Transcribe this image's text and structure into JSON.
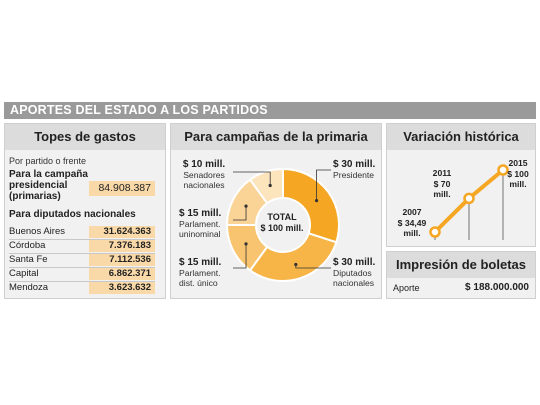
{
  "banner": "APORTES DEL ESTADO A LOS PARTIDOS",
  "topes": {
    "header": "Topes de gastos",
    "subtitle": "Por partido o frente",
    "campaign_label_1": "Para la campaña",
    "campaign_label_2": "presidencial",
    "campaign_label_3": "(primarias)",
    "campaign_value": "84.908.387",
    "deputies_title": "Para diputados nacionales",
    "rows": [
      {
        "name": "Buenos Aires",
        "value": "31.624.363"
      },
      {
        "name": "Córdoba",
        "value": "7.376.183"
      },
      {
        "name": "Santa Fe",
        "value": "7.112.536"
      },
      {
        "name": "Capital",
        "value": "6.862.371"
      },
      {
        "name": "Mendoza",
        "value": "3.623.632"
      }
    ]
  },
  "primaria": {
    "header": "Para campañas de la primaria",
    "center_1": "TOTAL",
    "center_2": "$ 100 mill.",
    "labels": {
      "sen_amount": "$ 10 mill.",
      "sen_1": "Senadores",
      "sen_2": "nacionales",
      "pu_amount": "$ 15 mill.",
      "pu_1": "Parlament.",
      "pu_2": "uninominal",
      "pd_amount": "$ 15 mill.",
      "pd_1": "Parlament.",
      "pd_2": "dist. único",
      "pres_amount": "$ 30 mill.",
      "pres_1": "Presidente",
      "dip_amount": "$ 30 mill.",
      "dip_1": "Diputados",
      "dip_2": "nacionales"
    }
  },
  "variacion": {
    "header": "Variación histórica",
    "labels": [
      {
        "year": "2007",
        "line1": "$ 34,49",
        "line2": "mill."
      },
      {
        "year": "2011",
        "line1": "$ 70",
        "line2": "mill."
      },
      {
        "year": "2015",
        "line1": "$ 100",
        "line2": "mill."
      }
    ]
  },
  "impresion": {
    "header": "Impresión de boletas",
    "label": "Aporte",
    "value": "$ 188.000.000"
  },
  "chart_data": [
    {
      "type": "pie",
      "title": "Para campañas de la primaria",
      "categories": [
        "Presidente",
        "Diputados nacionales",
        "Parlament. dist. único",
        "Parlament. uninominal",
        "Senadores nacionales"
      ],
      "values": [
        30,
        30,
        15,
        15,
        10
      ],
      "unit": "mill.",
      "colors": [
        "#f5a623",
        "#f7b548",
        "#f9c46f",
        "#fad396",
        "#fce4bd"
      ]
    },
    {
      "type": "line",
      "title": "Variación histórica",
      "x": [
        2007,
        2011,
        2015
      ],
      "values": [
        34.49,
        70,
        100
      ],
      "unit": "mill.",
      "color": "#f5a623"
    }
  ]
}
